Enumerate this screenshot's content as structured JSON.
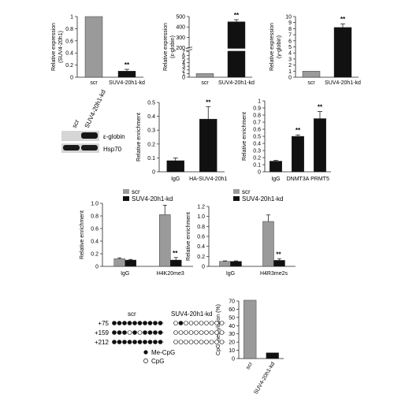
{
  "colors": {
    "scr": "#9a9a9a",
    "kd": "#111111",
    "axis": "#222222",
    "blot_bg": "#d8d8d8"
  },
  "chart_data": [
    {
      "id": "p1",
      "type": "bar",
      "ylabel": [
        "Relative expression",
        "(SUV4-20h1)"
      ],
      "ylim": [
        0,
        1.0
      ],
      "ticks": [
        0,
        0.2,
        0.4,
        0.6,
        0.8,
        1.0
      ],
      "tick_labels": [
        "0",
        "0.2",
        "0.4",
        "0.6",
        "0.8",
        "1"
      ],
      "categories": [
        "scr",
        "SUV4-20h1-kd"
      ],
      "values": [
        1.0,
        0.1
      ],
      "errors": [
        0,
        0.03
      ],
      "annotations": [
        "",
        "**"
      ]
    },
    {
      "id": "p2",
      "type": "bar",
      "ylabel": [
        "Relative expression",
        "(ε-globin)"
      ],
      "ylim": [
        0,
        500
      ],
      "axis_break": true,
      "ticks": [
        0,
        1,
        2,
        3,
        4,
        5,
        6,
        7,
        200,
        300,
        400,
        500
      ],
      "tick_labels": [
        "0",
        "1",
        "2",
        "3",
        "4",
        "5",
        "6",
        "7",
        "200",
        "300",
        "400",
        "500"
      ],
      "categories": [
        "scr",
        "SUV4-20h1-kd"
      ],
      "values": [
        1,
        450
      ],
      "errors": [
        0,
        20
      ],
      "annotations": [
        "",
        "**"
      ]
    },
    {
      "id": "p3",
      "type": "bar",
      "ylabel": [
        "Relative expression",
        "(γ-globin)"
      ],
      "ylim": [
        0,
        10
      ],
      "ticks": [
        0,
        1,
        2,
        3,
        4,
        5,
        6,
        7,
        8,
        9,
        10
      ],
      "tick_labels": [
        "0",
        "1",
        "2",
        "3",
        "4",
        "5",
        "6",
        "7",
        "8",
        "9",
        "10"
      ],
      "categories": [
        "scr",
        "SUV4-20h1-kd"
      ],
      "values": [
        1.0,
        8.2
      ],
      "errors": [
        0,
        0.6
      ],
      "annotations": [
        "",
        "**"
      ]
    },
    {
      "id": "p4",
      "type": "bar",
      "ylabel": [
        "Relative enrichment"
      ],
      "ylim": [
        0,
        0.5
      ],
      "ticks": [
        0,
        0.1,
        0.2,
        0.3,
        0.4,
        0.5
      ],
      "tick_labels": [
        "0",
        "0.1",
        "0.2",
        "0.3",
        "0.4",
        "0.5"
      ],
      "categories": [
        "IgG",
        "HA-SUV4-20h1"
      ],
      "values": [
        0.08,
        0.38
      ],
      "errors": [
        0.02,
        0.09
      ],
      "annotations": [
        "",
        "**"
      ]
    },
    {
      "id": "p5",
      "type": "bar",
      "ylabel": [
        "Relative enrichment"
      ],
      "ylim": [
        0,
        1.0
      ],
      "ticks": [
        0,
        0.1,
        0.2,
        0.3,
        0.4,
        0.5,
        0.6,
        0.7,
        0.8,
        0.9,
        1.0
      ],
      "tick_labels": [
        "0",
        "0.1",
        "0.2",
        "0.3",
        "0.4",
        "0.5",
        "0.6",
        "0.7",
        "0.8",
        "0.9",
        "1"
      ],
      "categories": [
        "IgG",
        "DNMT3A",
        "PRMT5"
      ],
      "values": [
        0.15,
        0.5,
        0.75
      ],
      "errors": [
        0.01,
        0.02,
        0.1
      ],
      "annotations": [
        "",
        "**",
        "**"
      ]
    },
    {
      "id": "p6",
      "type": "bar",
      "ylabel": [
        "Relative enrichment"
      ],
      "ylim": [
        0,
        1.0
      ],
      "ticks": [
        0,
        0.2,
        0.4,
        0.6,
        0.8,
        1.0
      ],
      "tick_labels": [
        "0",
        "0.2",
        "0.4",
        "0.6",
        "0.8",
        "1.0"
      ],
      "categories": [
        "IgG",
        "H4K20me3"
      ],
      "series": [
        {
          "name": "scr",
          "values": [
            0.12,
            0.82
          ],
          "errors": [
            0.015,
            0.15
          ]
        },
        {
          "name": "SUV4-20h1-kd",
          "values": [
            0.1,
            0.1
          ],
          "errors": [
            0.01,
            0.04
          ]
        }
      ],
      "annotations": [
        "",
        "**"
      ]
    },
    {
      "id": "p7",
      "type": "bar",
      "ylabel": [
        "Relative enrichment"
      ],
      "ylim": [
        0,
        1.2
      ],
      "ticks": [
        0,
        0.2,
        0.4,
        0.6,
        0.8,
        1.0,
        1.2
      ],
      "tick_labels": [
        "0",
        "0.2",
        "0.4",
        "0.6",
        "0.8",
        "1.0",
        "1.2"
      ],
      "categories": [
        "IgG",
        "H4R3me2s"
      ],
      "series": [
        {
          "name": "scr",
          "values": [
            0.1,
            0.9
          ],
          "errors": [
            0.01,
            0.13
          ]
        },
        {
          "name": "SUV4-20h1-kd",
          "values": [
            0.1,
            0.12
          ],
          "errors": [
            0.01,
            0.03
          ]
        }
      ],
      "annotations": [
        "",
        "**"
      ]
    },
    {
      "id": "p8",
      "type": "bar",
      "ylabel": [
        "CpG methylation (%)"
      ],
      "ylim": [
        0,
        70
      ],
      "ticks": [
        0,
        10,
        20,
        30,
        40,
        50,
        60,
        70
      ],
      "tick_labels": [
        "0",
        "10",
        "20",
        "30",
        "40",
        "50",
        "60",
        "70"
      ],
      "categories": [
        "scr",
        "SUV4-20h1-kd"
      ],
      "values": [
        71,
        7
      ],
      "errors": [
        0,
        0
      ],
      "annotations": [
        "",
        ""
      ]
    }
  ],
  "legend": {
    "scr": "scr",
    "kd": "SUV4-20h1-kd"
  },
  "blot": {
    "lanes": [
      "scr",
      "SUV4-20h1-kd"
    ],
    "bands": [
      "ε-globin",
      "Hsp70"
    ]
  },
  "bisulfite": {
    "groups": [
      "scr",
      "SUV4-20h1-kd"
    ],
    "rows": [
      {
        "position": "+75",
        "scr": [
          1,
          1,
          1,
          1,
          1,
          1,
          1,
          1,
          1,
          1
        ],
        "kd": [
          0,
          1,
          0,
          0,
          0,
          0,
          0,
          0,
          0,
          0
        ]
      },
      {
        "position": "+159",
        "scr": [
          1,
          1,
          1,
          0,
          1,
          0,
          1,
          1,
          1,
          1
        ],
        "kd": [
          0,
          0,
          0,
          0,
          0,
          0,
          0,
          0,
          0,
          0
        ]
      },
      {
        "position": "+212",
        "scr": [
          1,
          1,
          1,
          1,
          1,
          1,
          1,
          1,
          1,
          1
        ],
        "kd": [
          0,
          0,
          0,
          0,
          0,
          0,
          0,
          0,
          0,
          0
        ]
      }
    ],
    "legend": {
      "me": "Me-CpG",
      "un": "CpG"
    }
  }
}
